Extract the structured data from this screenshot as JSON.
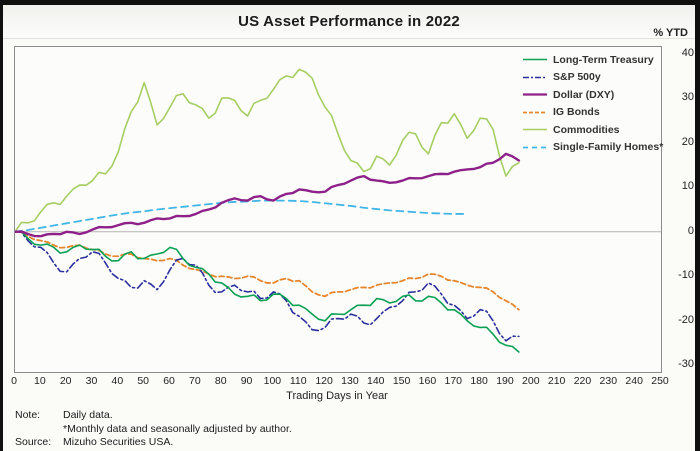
{
  "header": {
    "title": "US Asset Performance in 2022"
  },
  "axis": {
    "unit_label": "% YTD",
    "x_label": "Trading Days in Year",
    "y_ticks": [
      40,
      30,
      20,
      10,
      0,
      -10,
      -20,
      -30
    ],
    "x_ticks": [
      0,
      10,
      20,
      30,
      40,
      50,
      60,
      70,
      80,
      90,
      100,
      110,
      120,
      130,
      140,
      150,
      160,
      170,
      180,
      190,
      200,
      210,
      220,
      230,
      240,
      250
    ]
  },
  "notes": {
    "note_label": "Note:",
    "note_line1": "Daily data.",
    "note_line2": "*Monthly data and seasonally adjusted by author.",
    "source_label": "Source:",
    "source_text": "Mizuho Securities USA."
  },
  "chart_data": {
    "type": "line",
    "title": "US Asset Performance in 2022",
    "xlabel": "Trading Days in Year",
    "ylabel": "% YTD",
    "xlim": [
      0,
      250
    ],
    "ylim": [
      -30,
      40
    ],
    "grid": false,
    "zero_line": true,
    "zero_line_color": "#b3b3b0",
    "legend_position": "top-right-inside",
    "x_step": 5,
    "x_unit": "trading days",
    "series": [
      {
        "name": "Long-Term Treasury",
        "color": "#0ba153",
        "style": "solid",
        "width": 1.6,
        "jitter": 0.8,
        "z": 5,
        "values": [
          0,
          -1.5,
          -3,
          -3.5,
          -4.5,
          -3,
          -4,
          -5.5,
          -6.5,
          -4.5,
          -6,
          -5,
          -3.5,
          -6,
          -8,
          -9.5,
          -11.5,
          -14,
          -14.5,
          -15.5,
          -14,
          -15,
          -16.5,
          -18.5,
          -20,
          -18.5,
          -17.5,
          -16.5,
          -15,
          -16,
          -14.5,
          -15.5,
          -14.5,
          -16,
          -17.5,
          -20,
          -21.5,
          -23,
          -25.5,
          -27
        ]
      },
      {
        "name": "S&P 500y",
        "color": "#2b2f9e",
        "style": "dash-dot",
        "width": 1.6,
        "jitter": 0.9,
        "z": 4,
        "values": [
          0,
          -2,
          -3.5,
          -7,
          -9,
          -6,
          -4.5,
          -7,
          -10.5,
          -12.5,
          -11,
          -13,
          -8.5,
          -6,
          -7.5,
          -12,
          -13.5,
          -12,
          -13.5,
          -15,
          -13.5,
          -15.5,
          -19,
          -22,
          -21.5,
          -19.5,
          -18.5,
          -20.5,
          -19.5,
          -17,
          -15.5,
          -13.5,
          -11.5,
          -14,
          -16.5,
          -19.5,
          -17.5,
          -20,
          -24.5,
          -23.5
        ]
      },
      {
        "name": "Dollar (DXY)",
        "color": "#8e2189",
        "style": "solid",
        "width": 2.4,
        "jitter": 0.3,
        "z": 6,
        "values": [
          0,
          -0.5,
          -1,
          -0.5,
          0,
          -0.5,
          0.5,
          1,
          1.5,
          2,
          2,
          3,
          3,
          3.5,
          4,
          5,
          6.5,
          7.5,
          7,
          8,
          7,
          8.5,
          9.5,
          9,
          9,
          10.5,
          11.5,
          12.5,
          11.5,
          11,
          11.5,
          12,
          12.5,
          13,
          13.5,
          14,
          14.5,
          15.5,
          17.5,
          16
        ]
      },
      {
        "name": "IG Bonds",
        "color": "#e6862e",
        "style": "dashed",
        "width": 1.8,
        "jitter": 0.35,
        "z": 3,
        "values": [
          0,
          -1,
          -2,
          -3,
          -3.5,
          -3,
          -4,
          -5,
          -5.5,
          -5,
          -6,
          -6.5,
          -6,
          -7.5,
          -8.5,
          -9.5,
          -10,
          -10.5,
          -10,
          -11,
          -11.5,
          -10.5,
          -11,
          -13.5,
          -14.5,
          -13.5,
          -13,
          -12.5,
          -12,
          -11.5,
          -11,
          -10.5,
          -9.5,
          -10,
          -11,
          -12,
          -12.5,
          -13.5,
          -15.5,
          -17.5
        ]
      },
      {
        "name": "Commodities",
        "color": "#a6ce63",
        "style": "solid",
        "width": 1.6,
        "jitter": 1.1,
        "z": 2,
        "values": [
          0,
          2,
          4.5,
          6.5,
          8,
          10.5,
          11.5,
          13,
          18,
          27,
          33.5,
          24,
          28,
          31,
          28.5,
          25.5,
          30,
          29.5,
          26,
          29.5,
          32,
          35,
          36.5,
          34.5,
          28,
          22,
          16,
          13.5,
          17,
          15,
          20.5,
          22,
          17.5,
          24.5,
          26.5,
          21,
          25.5,
          23,
          12.5,
          15.5
        ]
      },
      {
        "name": "Single-Family Homes*",
        "color": "#41b6e6",
        "style": "dashed-sparse",
        "width": 1.8,
        "jitter": 0,
        "z": 1,
        "values": [
          0,
          0.4,
          0.9,
          1.4,
          1.9,
          2.4,
          2.9,
          3.4,
          3.9,
          4.3,
          4.6,
          5,
          5.3,
          5.6,
          5.9,
          6.2,
          6.5,
          6.7,
          6.8,
          7,
          7,
          7,
          6.9,
          6.7,
          6.4,
          6.1,
          5.8,
          5.4,
          5.1,
          4.8,
          4.6,
          4.4,
          4.2,
          4.1,
          4,
          4
        ]
      }
    ]
  }
}
